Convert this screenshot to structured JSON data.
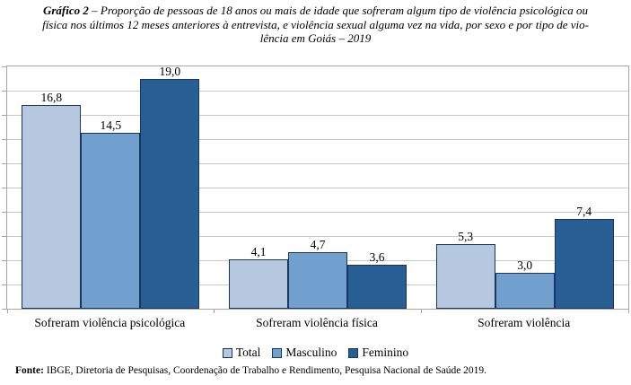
{
  "title": {
    "prefix": "Gráfico 2",
    "line1_rest": " – Proporção de pessoas de 18 anos ou mais de idade que sofreram algum tipo de violência psicológica ou",
    "line2": "física nos últimos 12 meses anteriores à entrevista, e violência sexual alguma vez na vida, por sexo e por tipo de vio-",
    "line3": "lência em Goiás – 2019"
  },
  "chart_data": {
    "type": "bar",
    "title": "Gráfico 2 – Proporção de pessoas de 18 anos ou mais de idade que sofreram algum tipo de violência psicológica ou física nos últimos 12 meses anteriores à entrevista, e violência sexual alguma vez na vida, por sexo e por tipo de violência em Goiás – 2019",
    "categories": [
      "Sofreram violência psicológica",
      "Sofreram violência física",
      "Sofreram violência"
    ],
    "series": [
      {
        "name": "Total",
        "color": "#b5c8df",
        "values": [
          16.8,
          4.1,
          5.3
        ],
        "labels": [
          "16,8",
          "4,1",
          "5,3"
        ]
      },
      {
        "name": "Masculino",
        "color": "#72a0ce",
        "values": [
          14.5,
          4.7,
          3.0
        ],
        "labels": [
          "14,5",
          "4,7",
          "3,0"
        ]
      },
      {
        "name": "Feminino",
        "color": "#275e94",
        "values": [
          19.0,
          3.6,
          7.4
        ],
        "labels": [
          "19,0",
          "3,6",
          "7,4"
        ]
      }
    ],
    "xlabel": "",
    "ylabel": "",
    "ylim": [
      0,
      20
    ],
    "grid_step": 2,
    "grid": true,
    "legend_position": "bottom",
    "bar_border_color": "#17375e",
    "gridline_color": "#c9c9c9",
    "plot_border_color": "#a6a6a6"
  },
  "footer": {
    "label": "Fonte:",
    "text": " IBGE, Diretoria de Pesquisas, Coordenação de Trabalho e Rendimento, Pesquisa Nacional de Saúde 2019."
  }
}
